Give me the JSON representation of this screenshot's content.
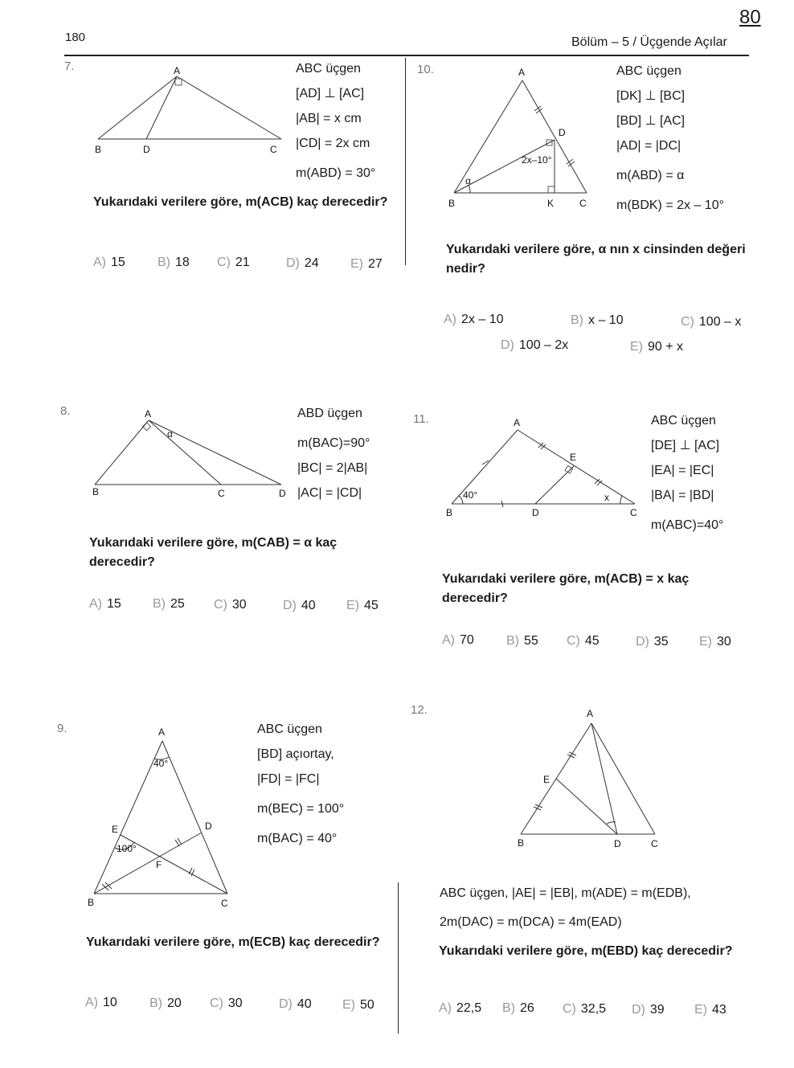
{
  "header": {
    "page_number": "180",
    "page_badge": "80",
    "chapter": "Bölüm – 5  /  Üçgende Açılar"
  },
  "questions": [
    {
      "number": "7.",
      "givens": [
        "ABC üçgen",
        "[AD] ⊥ [AC]",
        "|AB| = x cm",
        "|CD| = 2x cm",
        "m(ABD) = 30°"
      ],
      "question": "Yukarıdaki verilere göre, m(ACB) kaç derecedir?",
      "options": [
        [
          "A)",
          "15"
        ],
        [
          "B)",
          "18"
        ],
        [
          "C)",
          "21"
        ],
        [
          "D)",
          "24"
        ],
        [
          "E)",
          "27"
        ]
      ],
      "figure": {
        "labels": [
          "A",
          "B",
          "D",
          "C"
        ]
      }
    },
    {
      "number": "8.",
      "givens": [
        "ABD üçgen",
        "m(BAC)=90°",
        "|BC| = 2|AB|",
        "|AC| = |CD|"
      ],
      "question": "Yukarıdaki verilere göre, m(CAB) = α kaç derecedir?",
      "options": [
        [
          "A)",
          "15"
        ],
        [
          "B)",
          "25"
        ],
        [
          "C)",
          "30"
        ],
        [
          "D)",
          "40"
        ],
        [
          "E)",
          "45"
        ]
      ],
      "figure": {
        "labels": [
          "A",
          "B",
          "C",
          "D",
          "α"
        ]
      }
    },
    {
      "number": "9.",
      "givens": [
        "ABC üçgen",
        "[BD] açıortay,",
        "|FD| = |FC|",
        "m(BEC) = 100°",
        "m(BAC) = 40°"
      ],
      "question": "Yukarıdaki verilere göre, m(ECB) kaç derecedir?",
      "options": [
        [
          "A)",
          "10"
        ],
        [
          "B)",
          "20"
        ],
        [
          "C)",
          "30"
        ],
        [
          "D)",
          "40"
        ],
        [
          "E)",
          "50"
        ]
      ],
      "figure": {
        "labels": [
          "A",
          "B",
          "C",
          "D",
          "E",
          "F",
          "40°",
          "100°"
        ]
      }
    },
    {
      "number": "10.",
      "givens": [
        "ABC üçgen",
        "[DK] ⊥ [BC]",
        "[BD] ⊥ [AC]",
        "|AD| = |DC|",
        "m(ABD) = α",
        "m(BDK) = 2x – 10°"
      ],
      "question": "Yukarıdaki verilere göre, α nın x cinsinden değeri nedir?",
      "options": [
        [
          "A)",
          "2x – 10"
        ],
        [
          "B)",
          "x – 10"
        ],
        [
          "C)",
          "100 – x"
        ],
        [
          "D)",
          "100 – 2x"
        ],
        [
          "E)",
          "90 + x"
        ]
      ],
      "figure": {
        "labels": [
          "A",
          "B",
          "K",
          "C",
          "D",
          "α",
          "2x–10°"
        ]
      }
    },
    {
      "number": "11.",
      "givens": [
        "ABC üçgen",
        "[DE] ⊥ [AC]",
        "|EA| = |EC|",
        "|BA| = |BD|",
        "m(ABC)=40°"
      ],
      "question": "Yukarıdaki verilere göre, m(ACB) = x kaç derecedir?",
      "options": [
        [
          "A)",
          "70"
        ],
        [
          "B)",
          "55"
        ],
        [
          "C)",
          "45"
        ],
        [
          "D)",
          "35"
        ],
        [
          "E)",
          "30"
        ]
      ],
      "figure": {
        "labels": [
          "A",
          "B",
          "D",
          "C",
          "E",
          "40°",
          "x"
        ]
      }
    },
    {
      "number": "12.",
      "givens": [
        "ABC üçgen, |AE| = |EB|, m(ADE) = m(EDB),",
        "2m(DAC) = m(DCA) = 4m(EAD)"
      ],
      "question": "Yukarıdaki verilere göre, m(EBD) kaç derecedir?",
      "options": [
        [
          "A)",
          "22,5"
        ],
        [
          "B)",
          "26"
        ],
        [
          "C)",
          "32,5"
        ],
        [
          "D)",
          "39"
        ],
        [
          "E)",
          "43"
        ]
      ],
      "figure": {
        "labels": [
          "A",
          "B",
          "D",
          "C",
          "E"
        ]
      }
    }
  ]
}
